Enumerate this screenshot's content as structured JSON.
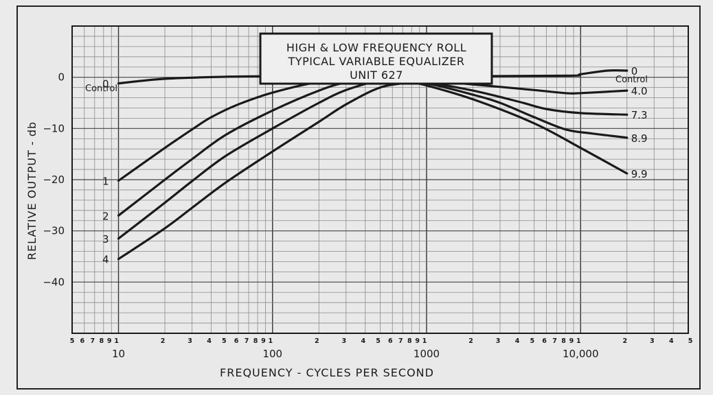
{
  "chart_data": {
    "type": "line",
    "title_lines": [
      "HIGH & LOW FREQUENCY ROLL",
      "TYPICAL VARIABLE EQUALIZER",
      "UNIT 627"
    ],
    "xlabel": "FREQUENCY - CYCLES PER SECOND",
    "ylabel": "RELATIVE OUTPUT - db",
    "x_scale": "log",
    "xlim": [
      5,
      50000
    ],
    "ylim": [
      -50,
      10
    ],
    "grid": true,
    "x_major_tick_labels": [
      {
        "x": 10,
        "text": "10"
      },
      {
        "x": 100,
        "text": "100"
      },
      {
        "x": 1000,
        "text": "1000"
      },
      {
        "x": 10000,
        "text": "10,000"
      }
    ],
    "x_minor_digit_labels": [
      {
        "x": 5,
        "text": "5"
      },
      {
        "x": 6,
        "text": "6"
      },
      {
        "x": 7,
        "text": "7"
      },
      {
        "x": 8,
        "text": "8"
      },
      {
        "x": 9,
        "text": "9"
      },
      {
        "x": 10,
        "text": "1"
      },
      {
        "x": 20,
        "text": "2"
      },
      {
        "x": 30,
        "text": "3"
      },
      {
        "x": 40,
        "text": "4"
      },
      {
        "x": 50,
        "text": "5"
      },
      {
        "x": 60,
        "text": "6"
      },
      {
        "x": 70,
        "text": "7"
      },
      {
        "x": 80,
        "text": "8"
      },
      {
        "x": 90,
        "text": "9"
      },
      {
        "x": 100,
        "text": "1"
      },
      {
        "x": 200,
        "text": "2"
      },
      {
        "x": 300,
        "text": "3"
      },
      {
        "x": 400,
        "text": "4"
      },
      {
        "x": 500,
        "text": "5"
      },
      {
        "x": 600,
        "text": "6"
      },
      {
        "x": 700,
        "text": "7"
      },
      {
        "x": 800,
        "text": "8"
      },
      {
        "x": 900,
        "text": "9"
      },
      {
        "x": 1000,
        "text": "1"
      },
      {
        "x": 2000,
        "text": "2"
      },
      {
        "x": 3000,
        "text": "3"
      },
      {
        "x": 4000,
        "text": "4"
      },
      {
        "x": 5000,
        "text": "5"
      },
      {
        "x": 6000,
        "text": "6"
      },
      {
        "x": 7000,
        "text": "7"
      },
      {
        "x": 8000,
        "text": "8"
      },
      {
        "x": 9000,
        "text": "9"
      },
      {
        "x": 10000,
        "text": "1"
      },
      {
        "x": 20000,
        "text": "2"
      },
      {
        "x": 30000,
        "text": "3"
      },
      {
        "x": 40000,
        "text": "4"
      },
      {
        "x": 50000,
        "text": "5"
      }
    ],
    "y_tick_labels": [
      {
        "y": 0,
        "text": "0"
      },
      {
        "y": -10,
        "text": "−10"
      },
      {
        "y": -20,
        "text": "−20"
      },
      {
        "y": -30,
        "text": "−30"
      },
      {
        "y": -40,
        "text": "−40"
      }
    ],
    "left_control_header": "Control",
    "right_control_header": "Control",
    "low_roll_series": [
      {
        "name": "0",
        "points": [
          [
            10,
            -1.2
          ],
          [
            20,
            -0.3
          ],
          [
            50,
            0.1
          ],
          [
            100,
            0.2
          ],
          [
            500,
            0.2
          ]
        ]
      },
      {
        "name": "1",
        "points": [
          [
            10,
            -20.2
          ],
          [
            20,
            -13.8
          ],
          [
            30,
            -10.2
          ],
          [
            40,
            -7.8
          ],
          [
            60,
            -5.3
          ],
          [
            100,
            -3.0
          ],
          [
            200,
            -0.9
          ],
          [
            400,
            0
          ]
        ]
      },
      {
        "name": "2",
        "points": [
          [
            10,
            -27.0
          ],
          [
            20,
            -20.0
          ],
          [
            30,
            -16.0
          ],
          [
            50,
            -11.2
          ],
          [
            100,
            -6.5
          ],
          [
            200,
            -2.6
          ],
          [
            300,
            -1.0
          ],
          [
            500,
            0
          ]
        ]
      },
      {
        "name": "3",
        "points": [
          [
            10,
            -31.5
          ],
          [
            20,
            -24.5
          ],
          [
            30,
            -20.3
          ],
          [
            50,
            -15.3
          ],
          [
            100,
            -10.0
          ],
          [
            200,
            -5.0
          ],
          [
            300,
            -2.5
          ],
          [
            500,
            -0.5
          ],
          [
            600,
            0
          ]
        ]
      },
      {
        "name": "4",
        "points": [
          [
            10,
            -35.5
          ],
          [
            20,
            -29.5
          ],
          [
            30,
            -25.5
          ],
          [
            50,
            -20.5
          ],
          [
            100,
            -14.5
          ],
          [
            200,
            -8.7
          ],
          [
            300,
            -5.3
          ],
          [
            500,
            -2.0
          ],
          [
            800,
            -1.0
          ]
        ]
      }
    ],
    "high_roll_series": [
      {
        "name": "0",
        "points": [
          [
            500,
            0.2
          ],
          [
            1000,
            0.2
          ],
          [
            8000,
            0.3
          ],
          [
            10000,
            0.6
          ],
          [
            15000,
            1.3
          ],
          [
            20000,
            1.3
          ]
        ]
      },
      {
        "name": "4.0",
        "points": [
          [
            500,
            0
          ],
          [
            1000,
            -0.6
          ],
          [
            2000,
            -1.4
          ],
          [
            5000,
            -2.5
          ],
          [
            8000,
            -3.1
          ],
          [
            10000,
            -3.1
          ],
          [
            20000,
            -2.6
          ]
        ]
      },
      {
        "name": "7.3",
        "points": [
          [
            500,
            0
          ],
          [
            1000,
            -1.0
          ],
          [
            2000,
            -2.6
          ],
          [
            4000,
            -4.8
          ],
          [
            6000,
            -6.2
          ],
          [
            10000,
            -7.0
          ],
          [
            20000,
            -7.3
          ]
        ]
      },
      {
        "name": "8.9",
        "points": [
          [
            500,
            -0.2
          ],
          [
            1000,
            -1.2
          ],
          [
            2000,
            -3.4
          ],
          [
            3000,
            -5.0
          ],
          [
            5000,
            -7.8
          ],
          [
            8000,
            -10.2
          ],
          [
            12000,
            -11.0
          ],
          [
            20000,
            -11.8
          ]
        ]
      },
      {
        "name": "9.9",
        "points": [
          [
            800,
            -1.0
          ],
          [
            1000,
            -1.6
          ],
          [
            2000,
            -4.3
          ],
          [
            5000,
            -9.0
          ],
          [
            10000,
            -13.8
          ],
          [
            20000,
            -18.8
          ]
        ]
      }
    ]
  },
  "colors": {
    "paper": "#e9e9e9",
    "ink": "#1a1a1a",
    "grid": "#8a8a8a"
  }
}
